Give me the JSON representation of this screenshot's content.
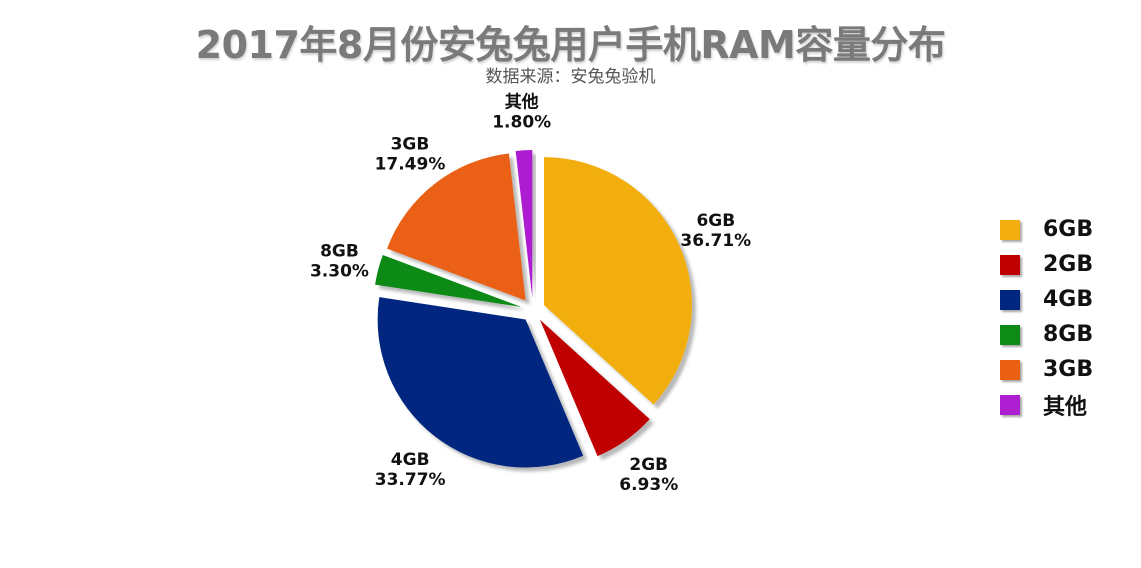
{
  "header": {
    "title": "2017年8月份安兔兔用户手机RAM容量分布",
    "subtitle": "数据来源：安兔兔验机"
  },
  "chart_data": {
    "type": "pie",
    "title": "2017年8月份安兔兔用户手机RAM容量分布",
    "subtitle": "数据来源：安兔兔验机",
    "legend_position": "right",
    "exploded": true,
    "slices": [
      {
        "label": "6GB",
        "value": 36.71,
        "display": "36.71%",
        "color": "#F2AE0E"
      },
      {
        "label": "2GB",
        "value": 6.93,
        "display": "6.93%",
        "color": "#C00000"
      },
      {
        "label": "4GB",
        "value": 33.77,
        "display": "33.77%",
        "color": "#002780"
      },
      {
        "label": "8GB",
        "value": 3.3,
        "display": "3.30%",
        "color": "#0E8A17"
      },
      {
        "label": "3GB",
        "value": 17.49,
        "display": "17.49%",
        "color": "#E96012"
      },
      {
        "label": "其他",
        "value": 1.8,
        "display": "1.80%",
        "color": "#AE1FD1"
      }
    ]
  }
}
